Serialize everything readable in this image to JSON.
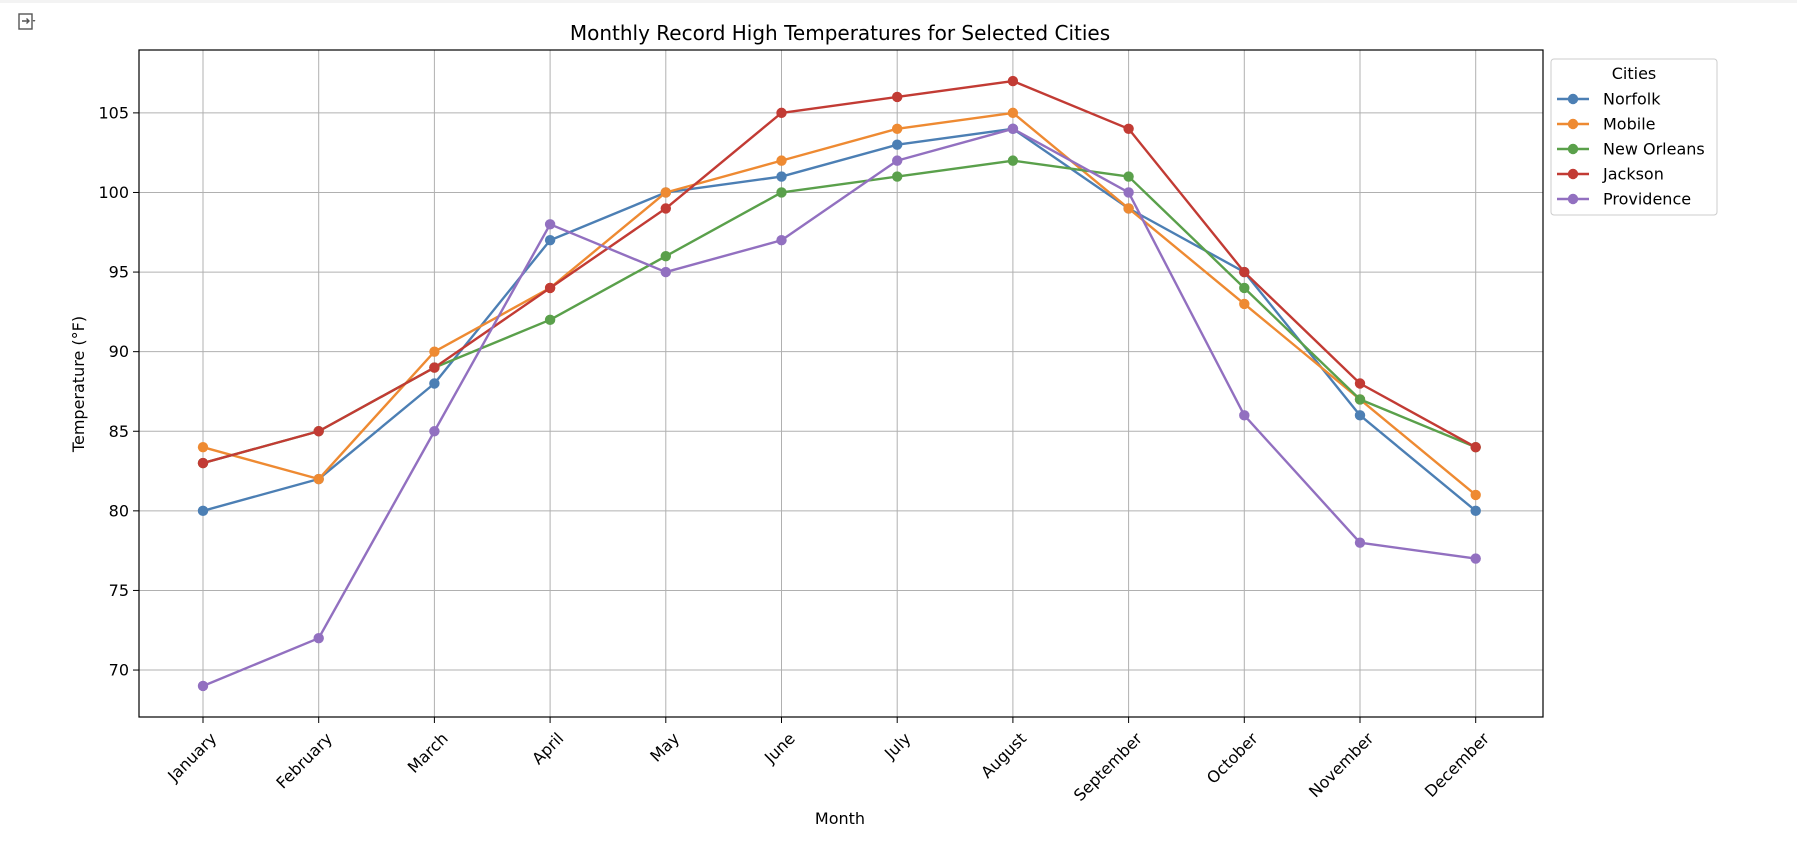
{
  "chart_data": {
    "type": "line",
    "title": "Monthly Record High Temperatures for Selected Cities",
    "xlabel": "Month",
    "ylabel": "Temperature (°F)",
    "categories": [
      "January",
      "February",
      "March",
      "April",
      "May",
      "June",
      "July",
      "August",
      "September",
      "October",
      "November",
      "December"
    ],
    "yticks": [
      70,
      75,
      80,
      85,
      90,
      95,
      100,
      105
    ],
    "ylim": [
      67.05,
      108.95
    ],
    "grid": true,
    "legend": {
      "title": "Cities",
      "placement": "outside-top-right"
    },
    "series": [
      {
        "name": "Norfolk",
        "color": "#4c7fb4",
        "values": [
          80,
          82,
          88,
          97,
          100,
          101,
          103,
          104,
          99,
          95,
          86,
          80
        ]
      },
      {
        "name": "Mobile",
        "color": "#ee8a32",
        "values": [
          84,
          82,
          90,
          94,
          100,
          102,
          104,
          105,
          99,
          93,
          87,
          81
        ]
      },
      {
        "name": "New Orleans",
        "color": "#5aa04b",
        "values": [
          83,
          85,
          89,
          92,
          96,
          100,
          101,
          102,
          101,
          94,
          87,
          84
        ]
      },
      {
        "name": "Jackson",
        "color": "#c23b34",
        "values": [
          83,
          85,
          89,
          94,
          99,
          105,
          106,
          107,
          104,
          95,
          88,
          84
        ]
      },
      {
        "name": "Providence",
        "color": "#9270c0",
        "values": [
          69,
          72,
          85,
          98,
          95,
          97,
          102,
          104,
          100,
          86,
          78,
          77
        ]
      }
    ]
  }
}
